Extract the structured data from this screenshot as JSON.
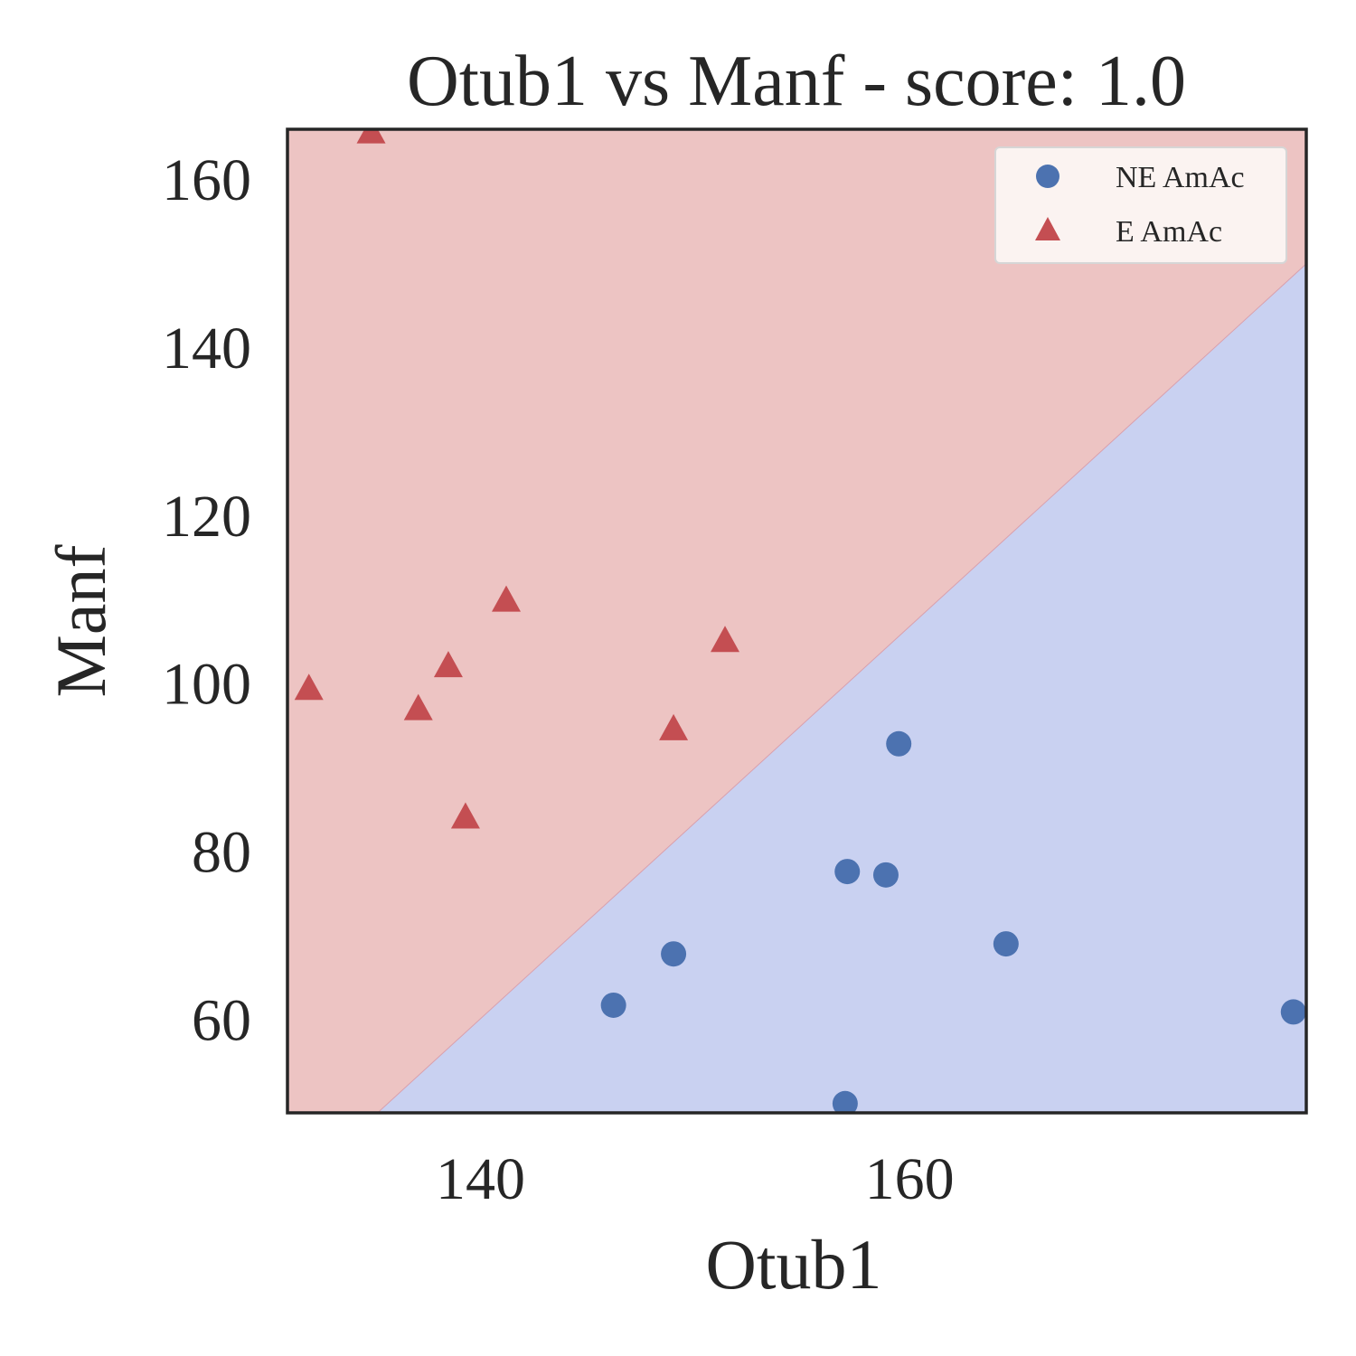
{
  "chart_data": {
    "type": "scatter",
    "title": "Otub1 vs Manf - score: 1.0",
    "xlabel": "Otub1",
    "ylabel": "Manf",
    "xlim": [
      131,
      178.5
    ],
    "ylim": [
      49,
      166
    ],
    "xticks": [
      140,
      160
    ],
    "yticks": [
      60,
      80,
      100,
      120,
      140,
      160
    ],
    "grid": false,
    "legend_position": "top-right",
    "decision_boundary": {
      "points": [
        [
          135.2,
          49
        ],
        [
          178.5,
          150
        ]
      ],
      "region_above_color": "#edc4c3",
      "region_below_color": "#c9d1f1"
    },
    "series": [
      {
        "name": "NE AmAc",
        "marker": "circle",
        "color": "#4c72b0",
        "points": [
          [
            146.2,
            61.8
          ],
          [
            149,
            67.9
          ],
          [
            157,
            50.1
          ],
          [
            157.1,
            77.7
          ],
          [
            158.9,
            77.3
          ],
          [
            159.5,
            92.9
          ],
          [
            164.5,
            69.1
          ],
          [
            177.9,
            61
          ]
        ]
      },
      {
        "name": "E AmAc",
        "marker": "triangle",
        "color": "#c44e52",
        "points": [
          [
            132,
            99.3
          ],
          [
            134.9,
            165.5
          ],
          [
            137.1,
            96.9
          ],
          [
            138.5,
            102
          ],
          [
            139.3,
            84
          ],
          [
            141.2,
            109.8
          ],
          [
            149,
            94.5
          ],
          [
            151.4,
            105
          ]
        ]
      }
    ]
  }
}
